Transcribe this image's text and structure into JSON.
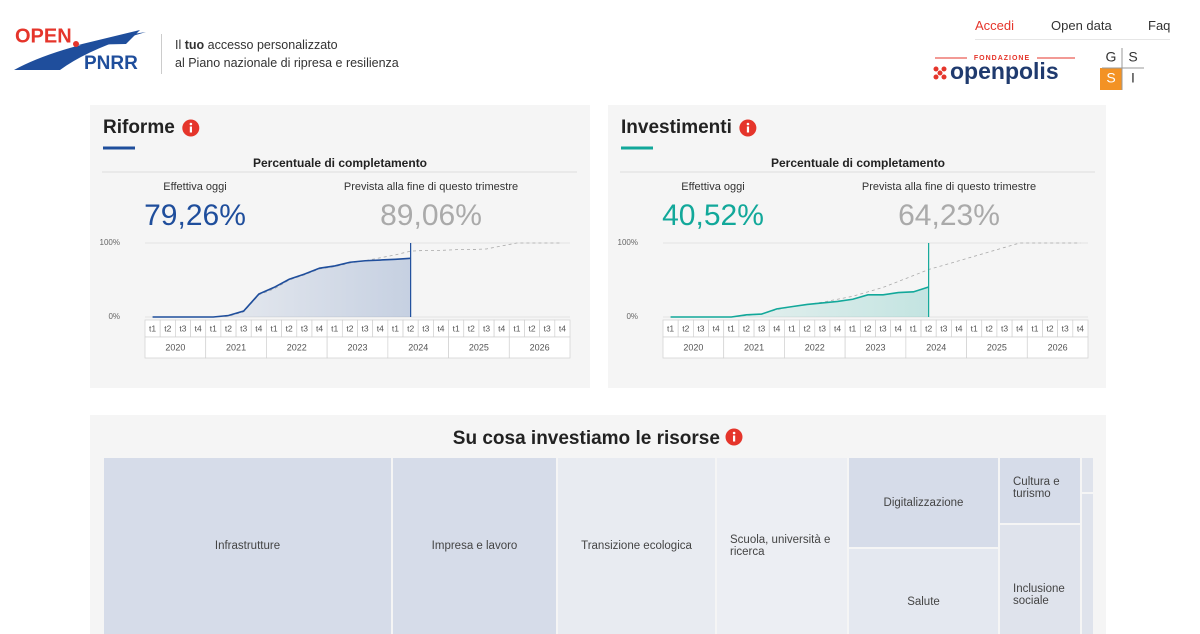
{
  "header": {
    "logo": {
      "top": "OPEN",
      "bottom": "PNRR"
    },
    "tagline": {
      "before": "Il",
      "bold": "tuo",
      "after": "accesso personalizzato",
      "line2": "al Piano nazionale di ripresa e resilienza"
    },
    "nav": [
      "Accedi",
      "Open data",
      "Faq"
    ],
    "partner": {
      "label": "FONDAZIONE",
      "name": "openpolis"
    },
    "institute": [
      "G",
      "S",
      "S",
      "I"
    ]
  },
  "panels": [
    {
      "title": "Riforme",
      "subtitle": "Percentuale di completamento",
      "actual_label": "Effettiva oggi",
      "actual": "79,26%",
      "expected_label": "Prevista alla fine di questo trimestre",
      "expected": "89,06%",
      "chart_data": {
        "type": "line",
        "ylim": [
          0,
          100
        ],
        "yticks": [
          {
            "value": 100,
            "label": "100%"
          },
          {
            "value": 0,
            "label": "0%"
          }
        ],
        "categories": [
          "t1",
          "t2",
          "t3",
          "t4",
          "t1",
          "t2",
          "t3",
          "t4",
          "t1",
          "t2",
          "t3",
          "t4",
          "t1",
          "t2",
          "t3",
          "t4",
          "t1",
          "t2",
          "t3",
          "t4",
          "t1",
          "t2",
          "t3",
          "t4",
          "t1",
          "t2",
          "t3",
          "t4"
        ],
        "years": [
          "2020",
          "2021",
          "2022",
          "2023",
          "2024",
          "2025",
          "2026"
        ],
        "series": [
          {
            "color": "#1f4e9c",
            "values": [
              0,
              0,
              0,
              0,
              0,
              2,
              8,
              31,
              40,
              51,
              58,
              66,
              69,
              74,
              76,
              77,
              78,
              79.26,
              null,
              null,
              null,
              null,
              null,
              null,
              null,
              null,
              null,
              null
            ]
          },
          {
            "color": "#aaaaaa",
            "dashed": true,
            "values": [
              0,
              0,
              0,
              0,
              0,
              1,
              7,
              30,
              38,
              50,
              57,
              65,
              68,
              73,
              76,
              80,
              84,
              89.06,
              90,
              90,
              91,
              91,
              92,
              96,
              100,
              100,
              100,
              100
            ]
          }
        ]
      }
    },
    {
      "title": "Investimenti",
      "subtitle": "Percentuale di completamento",
      "actual_label": "Effettiva oggi",
      "actual": "40,52%",
      "expected_label": "Prevista alla fine di questo trimestre",
      "expected": "64,23%",
      "chart_data": {
        "type": "line",
        "ylim": [
          0,
          100
        ],
        "yticks": [
          {
            "value": 100,
            "label": "100%"
          },
          {
            "value": 0,
            "label": "0%"
          }
        ],
        "categories": [
          "t1",
          "t2",
          "t3",
          "t4",
          "t1",
          "t2",
          "t3",
          "t4",
          "t1",
          "t2",
          "t3",
          "t4",
          "t1",
          "t2",
          "t3",
          "t4",
          "t1",
          "t2",
          "t3",
          "t4",
          "t1",
          "t2",
          "t3",
          "t4",
          "t1",
          "t2",
          "t3",
          "t4"
        ],
        "years": [
          "2020",
          "2021",
          "2022",
          "2023",
          "2024",
          "2025",
          "2026"
        ],
        "series": [
          {
            "color": "#12a89a",
            "values": [
              0,
              0,
              0,
              0,
              0,
              3,
              4,
              11,
              14,
              17,
              19,
              21,
              24,
              30,
              30,
              33,
              34,
              40.52,
              null,
              null,
              null,
              null,
              null,
              null,
              null,
              null,
              null,
              null
            ]
          },
          {
            "color": "#aaaaaa",
            "dashed": true,
            "values": [
              0,
              0,
              0,
              0,
              0,
              2,
              4,
              10,
              14,
              17,
              20,
              24,
              28,
              34,
              40,
              48,
              56,
              64.23,
              70,
              76,
              82,
              88,
              94,
              100,
              100,
              100,
              100,
              100
            ]
          }
        ]
      }
    }
  ],
  "treemap": {
    "title": "Su cosa investiamo le risorse",
    "tiles": [
      "Infrastrutture",
      "Impresa e lavoro",
      "Transizione ecologica",
      "Scuola, università e ricerca",
      "Digitalizzazione",
      "Salute",
      "Cultura e turismo",
      "Inclusione sociale"
    ]
  }
}
